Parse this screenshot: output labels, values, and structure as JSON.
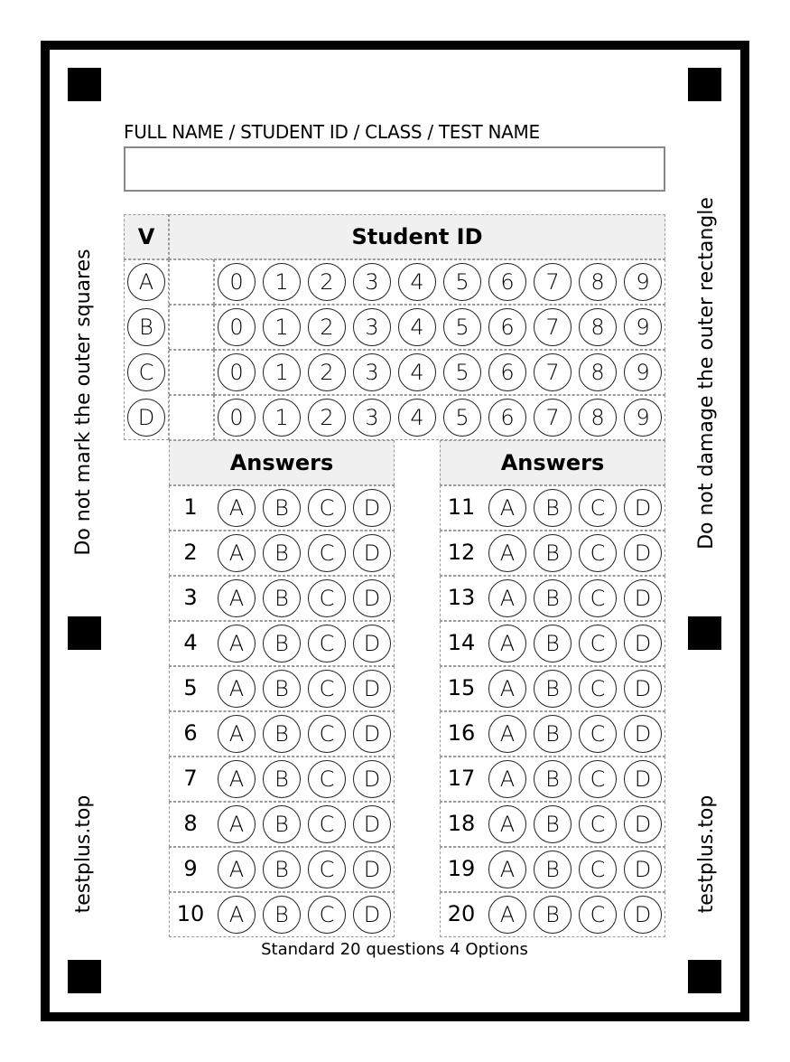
{
  "header": {
    "title": "FULL NAME / STUDENT ID / CLASS / TEST NAME",
    "name_value": ""
  },
  "version": {
    "label": "V",
    "options": [
      "A",
      "B",
      "C",
      "D"
    ]
  },
  "student_id": {
    "label": "Student ID",
    "rows": 4,
    "digits": [
      "0",
      "1",
      "2",
      "3",
      "4",
      "5",
      "6",
      "7",
      "8",
      "9"
    ]
  },
  "answers": {
    "label": "Answers",
    "options": [
      "A",
      "B",
      "C",
      "D"
    ],
    "columns": [
      {
        "questions": [
          "1",
          "2",
          "3",
          "4",
          "5",
          "6",
          "7",
          "8",
          "9",
          "10"
        ]
      },
      {
        "questions": [
          "11",
          "12",
          "13",
          "14",
          "15",
          "16",
          "17",
          "18",
          "19",
          "20"
        ]
      }
    ]
  },
  "side_text": {
    "left_top": "Do not mark the outer squares",
    "right_top": "Do not damage the outer rectangle",
    "left_bottom": "testplus.top",
    "right_bottom": "testplus.top"
  },
  "footer": "Standard 20 questions 4 Options"
}
